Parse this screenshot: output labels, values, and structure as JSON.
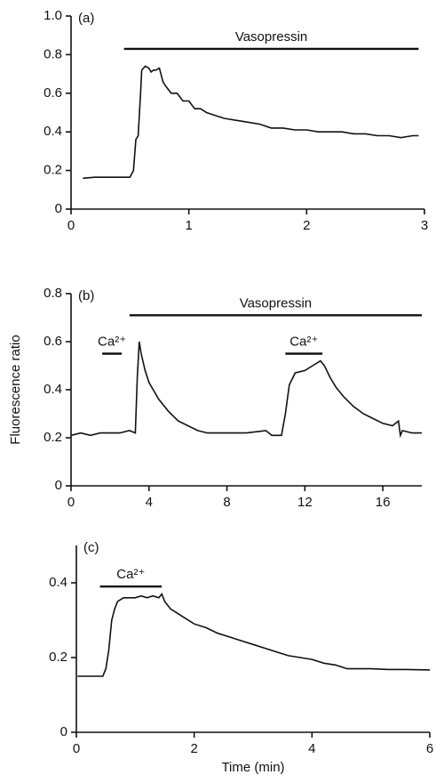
{
  "chart_data": [
    {
      "type": "line",
      "label": "(a)",
      "x": [
        0.1,
        0.2,
        0.3,
        0.4,
        0.5,
        0.53,
        0.55,
        0.57,
        0.59,
        0.6,
        0.63,
        0.66,
        0.68,
        0.7,
        0.72,
        0.75,
        0.78,
        0.8,
        0.85,
        0.9,
        0.95,
        1.0,
        1.05,
        1.1,
        1.15,
        1.2,
        1.3,
        1.4,
        1.5,
        1.6,
        1.7,
        1.8,
        1.9,
        2.0,
        2.1,
        2.2,
        2.3,
        2.4,
        2.5,
        2.6,
        2.7,
        2.8,
        2.9,
        2.95
      ],
      "values": [
        0.16,
        0.165,
        0.165,
        0.165,
        0.165,
        0.2,
        0.36,
        0.38,
        0.6,
        0.72,
        0.74,
        0.73,
        0.71,
        0.72,
        0.72,
        0.73,
        0.66,
        0.64,
        0.6,
        0.6,
        0.56,
        0.56,
        0.52,
        0.52,
        0.5,
        0.49,
        0.47,
        0.46,
        0.45,
        0.44,
        0.42,
        0.42,
        0.41,
        0.41,
        0.4,
        0.4,
        0.4,
        0.39,
        0.39,
        0.38,
        0.38,
        0.37,
        0.38,
        0.38
      ],
      "xlim": [
        0,
        3
      ],
      "ylim": [
        0,
        1.0
      ],
      "xticks": [
        0,
        1,
        2,
        3
      ],
      "yticks": [
        0,
        0.2,
        0.4,
        0.6,
        0.8,
        {
          "value": 1,
          "label": "1.0"
        }
      ],
      "annotations": [
        {
          "text": "Vasopressin",
          "xrange": [
            0.45,
            2.95
          ],
          "y": 0.83
        }
      ]
    },
    {
      "type": "line",
      "label": "(b)",
      "x": [
        0,
        0.5,
        1,
        1.5,
        2,
        2.5,
        3,
        3.3,
        3.4,
        3.5,
        3.6,
        3.8,
        4,
        4.5,
        5,
        5.5,
        6,
        6.5,
        7,
        8,
        9,
        10,
        10.3,
        10.8,
        11,
        11.2,
        11.5,
        12,
        12.4,
        12.8,
        13,
        13.3,
        13.6,
        14,
        14.5,
        15,
        15.5,
        16,
        16.5,
        16.8,
        16.9,
        17,
        17.5,
        18
      ],
      "values": [
        0.21,
        0.22,
        0.21,
        0.22,
        0.22,
        0.22,
        0.23,
        0.22,
        0.45,
        0.6,
        0.55,
        0.48,
        0.43,
        0.36,
        0.31,
        0.27,
        0.25,
        0.23,
        0.22,
        0.22,
        0.22,
        0.23,
        0.21,
        0.21,
        0.3,
        0.42,
        0.47,
        0.48,
        0.5,
        0.52,
        0.5,
        0.45,
        0.41,
        0.37,
        0.33,
        0.3,
        0.28,
        0.26,
        0.25,
        0.27,
        0.21,
        0.23,
        0.22,
        0.22
      ],
      "xlim": [
        0,
        18
      ],
      "ylim": [
        0,
        0.8
      ],
      "xticks": [
        0,
        4,
        8,
        12,
        16
      ],
      "yticks": [
        0,
        0.2,
        0.4,
        0.6,
        0.8
      ],
      "ylabel": "Fluorescence ratio",
      "annotations": [
        {
          "text": "Vasopressin",
          "xrange": [
            3.0,
            18
          ],
          "y": 0.71
        },
        {
          "text": "Ca²⁺",
          "xrange": [
            1.6,
            2.6
          ],
          "y": 0.55
        },
        {
          "text": "Ca²⁺",
          "xrange": [
            11.0,
            12.9
          ],
          "y": 0.55
        }
      ]
    },
    {
      "type": "line",
      "label": "(c)",
      "x": [
        0.02,
        0.2,
        0.45,
        0.5,
        0.55,
        0.6,
        0.65,
        0.7,
        0.8,
        0.9,
        1.0,
        1.1,
        1.2,
        1.3,
        1.4,
        1.45,
        1.5,
        1.6,
        1.7,
        1.8,
        2.0,
        2.2,
        2.4,
        2.6,
        2.8,
        3.0,
        3.2,
        3.4,
        3.6,
        3.8,
        4.0,
        4.2,
        4.4,
        4.6,
        4.8,
        5.0,
        5.3,
        5.6,
        6.0
      ],
      "values": [
        0.15,
        0.15,
        0.15,
        0.17,
        0.22,
        0.3,
        0.33,
        0.35,
        0.36,
        0.36,
        0.36,
        0.365,
        0.36,
        0.365,
        0.36,
        0.37,
        0.35,
        0.33,
        0.32,
        0.31,
        0.29,
        0.28,
        0.265,
        0.255,
        0.245,
        0.235,
        0.225,
        0.215,
        0.205,
        0.2,
        0.195,
        0.185,
        0.18,
        0.17,
        0.17,
        0.17,
        0.168,
        0.168,
        0.167
      ],
      "xlim": [
        0,
        6
      ],
      "ylim": [
        0,
        0.5
      ],
      "xticks": [
        0,
        2,
        4,
        6
      ],
      "yticks": [
        0,
        0.2,
        0.4
      ],
      "xlabel": "Time (min)",
      "annotations": [
        {
          "text": "Ca²⁺",
          "xrange": [
            0.4,
            1.45
          ],
          "y": 0.39
        }
      ]
    }
  ]
}
